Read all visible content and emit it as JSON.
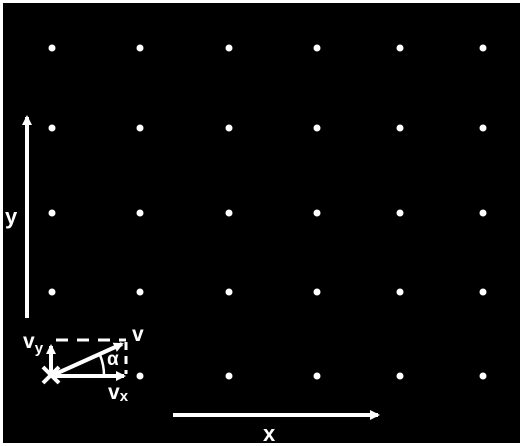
{
  "colors": {
    "background": "#000000",
    "frame": "#ffffff",
    "foreground": "#ffffff"
  },
  "grid": {
    "rows": 5,
    "columns": 6,
    "dot_color": "#ffffff"
  },
  "labels": {
    "x_axis": "x",
    "y_axis": "y",
    "v": "v",
    "v_y": "v",
    "v_y_sub": "y",
    "v_x": "v",
    "v_x_sub": "x",
    "alpha": "α"
  }
}
